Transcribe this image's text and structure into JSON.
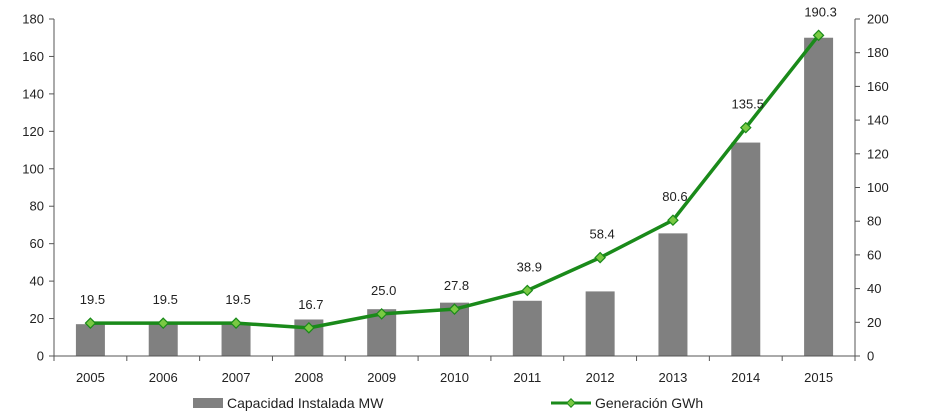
{
  "chart_data": {
    "type": "bar+line",
    "categories": [
      "2005",
      "2006",
      "2007",
      "2008",
      "2009",
      "2010",
      "2011",
      "2012",
      "2013",
      "2014",
      "2015"
    ],
    "series": [
      {
        "name": "Capacidad Instalada MW",
        "type": "bar",
        "axis": "left",
        "color": "#808080",
        "values": [
          17,
          17,
          17,
          19.5,
          25,
          28.5,
          29.5,
          34.5,
          65.5,
          114,
          170
        ]
      },
      {
        "name": "Generación GWh",
        "type": "line",
        "axis": "right",
        "color": "#1a8a1a",
        "marker_color": "#7ac943",
        "values": [
          19.5,
          19.5,
          19.5,
          16.7,
          25.0,
          27.8,
          38.9,
          58.4,
          80.6,
          135.5,
          190.3
        ],
        "labels": [
          "19.5",
          "19.5",
          "19.5",
          "16.7",
          "25.0",
          "27.8",
          "38.9",
          "58.4",
          "80.6",
          "135.5",
          "190.3"
        ]
      }
    ],
    "y_left": {
      "min": 0,
      "max": 180,
      "ticks": [
        "0",
        "20",
        "40",
        "60",
        "80",
        "100",
        "120",
        "140",
        "160",
        "180"
      ]
    },
    "y_right": {
      "min": 0,
      "max": 200,
      "ticks": [
        "0",
        "20",
        "40",
        "60",
        "80",
        "100",
        "120",
        "140",
        "160",
        "180",
        "200"
      ]
    },
    "grid": false,
    "legend": "bottom"
  }
}
